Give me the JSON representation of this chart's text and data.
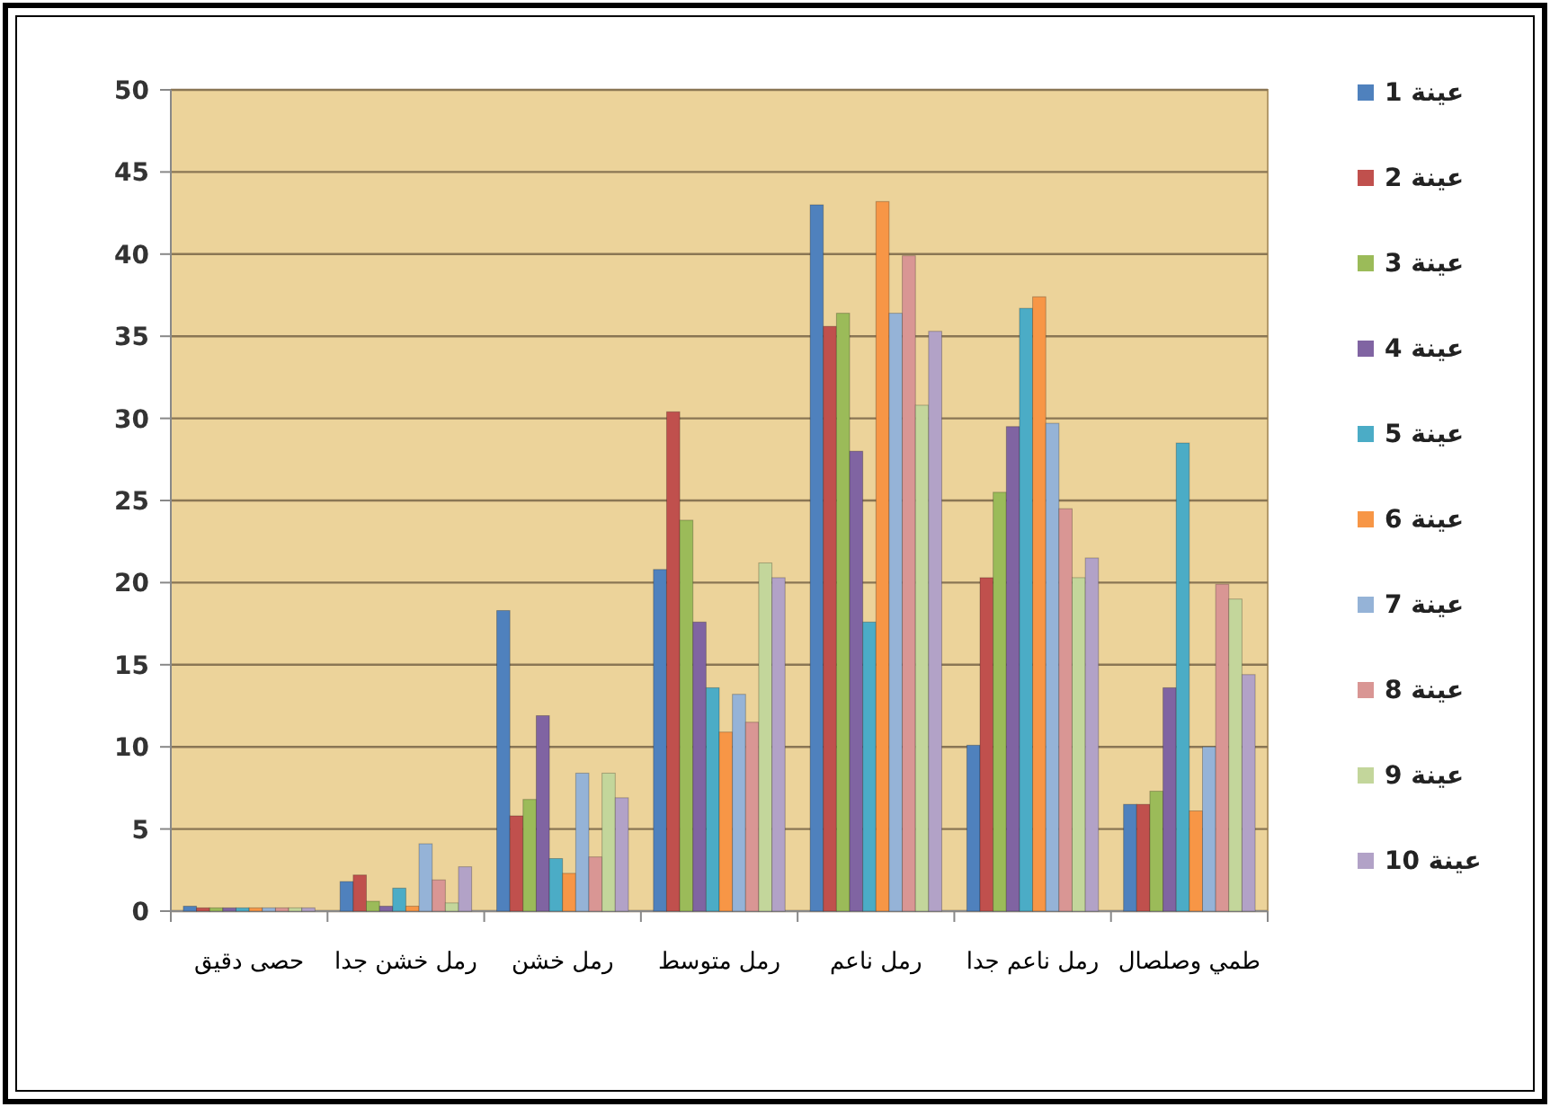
{
  "chart_data": {
    "type": "bar",
    "categories": [
      "حصى دقيق",
      "رمل خشن جدا",
      "رمل خشن",
      "رمل متوسط",
      "رمل ناعم",
      "رمل ناعم جدا",
      "طمي وصلصال"
    ],
    "series": [
      {
        "name": "عينة 1",
        "color": "#4f81bd",
        "values": [
          0.3,
          1.8,
          18.3,
          20.8,
          43.0,
          10.1,
          6.5
        ]
      },
      {
        "name": "عينة 2",
        "color": "#c0504d",
        "values": [
          0.2,
          2.2,
          5.8,
          30.4,
          35.6,
          20.3,
          6.5
        ]
      },
      {
        "name": "عينة 3",
        "color": "#9bbb59",
        "values": [
          0.2,
          0.6,
          6.8,
          23.8,
          36.4,
          25.5,
          7.3
        ]
      },
      {
        "name": "عينة 4",
        "color": "#8064a2",
        "values": [
          0.2,
          0.3,
          11.9,
          17.6,
          28.0,
          29.5,
          13.6
        ]
      },
      {
        "name": "عينة 5",
        "color": "#4bacc6",
        "values": [
          0.2,
          1.4,
          3.2,
          13.6,
          17.6,
          36.7,
          28.5
        ]
      },
      {
        "name": "عينة 6",
        "color": "#f79646",
        "values": [
          0.2,
          0.3,
          2.3,
          10.9,
          43.2,
          37.4,
          6.1
        ]
      },
      {
        "name": "عينة 7",
        "color": "#95b3d7",
        "values": [
          0.2,
          4.1,
          8.4,
          13.2,
          36.4,
          29.7,
          10.0
        ]
      },
      {
        "name": "عينة 8",
        "color": "#d99694",
        "values": [
          0.2,
          1.9,
          3.3,
          11.5,
          39.9,
          24.5,
          19.9
        ]
      },
      {
        "name": "عينة 9",
        "color": "#c3d69b",
        "values": [
          0.2,
          0.5,
          8.4,
          21.2,
          30.8,
          20.3,
          19.0
        ]
      },
      {
        "name": "عينة 10",
        "color": "#b2a2c7",
        "values": [
          0.2,
          2.7,
          6.9,
          20.3,
          35.3,
          21.5,
          14.4
        ]
      }
    ],
    "ylim": [
      0,
      50
    ],
    "yticks": [
      0,
      5,
      10,
      15,
      20,
      25,
      30,
      35,
      40,
      45,
      50
    ],
    "grid": "y",
    "legend": "right"
  }
}
